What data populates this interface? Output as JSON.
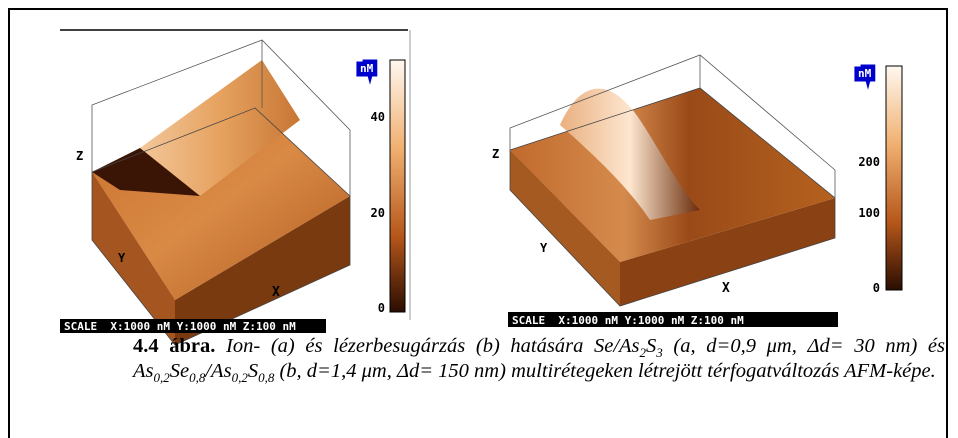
{
  "panels": [
    {
      "unit": "nM",
      "ticks": [
        40,
        20,
        0
      ],
      "axes": {
        "z": "Z",
        "y": "Y",
        "x": "X"
      },
      "scale": "SCALE  X:1000 nM Y:1000 nM Z:100 nM"
    },
    {
      "unit": "nM",
      "ticks": [
        200,
        100,
        0
      ],
      "axes": {
        "z": "Z",
        "y": "Y",
        "x": "X"
      },
      "scale": "SCALE  X:1000 nM Y:1000 nM Z:100 nM"
    }
  ],
  "caption": {
    "label": "4.4 ábra.",
    "parts": [
      " Ion- (a) és lézerbesugárzás (b) hatására Se/As",
      "2",
      "S",
      "3",
      " (a, d=0,9 μm, Δd= 30 nm) és As",
      "0,2",
      "Se",
      "0,8",
      "/As",
      "0,2",
      "S",
      "0,8",
      " (b, d=1,4 μm, Δd= 150 nm) multirétegeken létrejött térfogatváltozás AFM-képe."
    ]
  }
}
